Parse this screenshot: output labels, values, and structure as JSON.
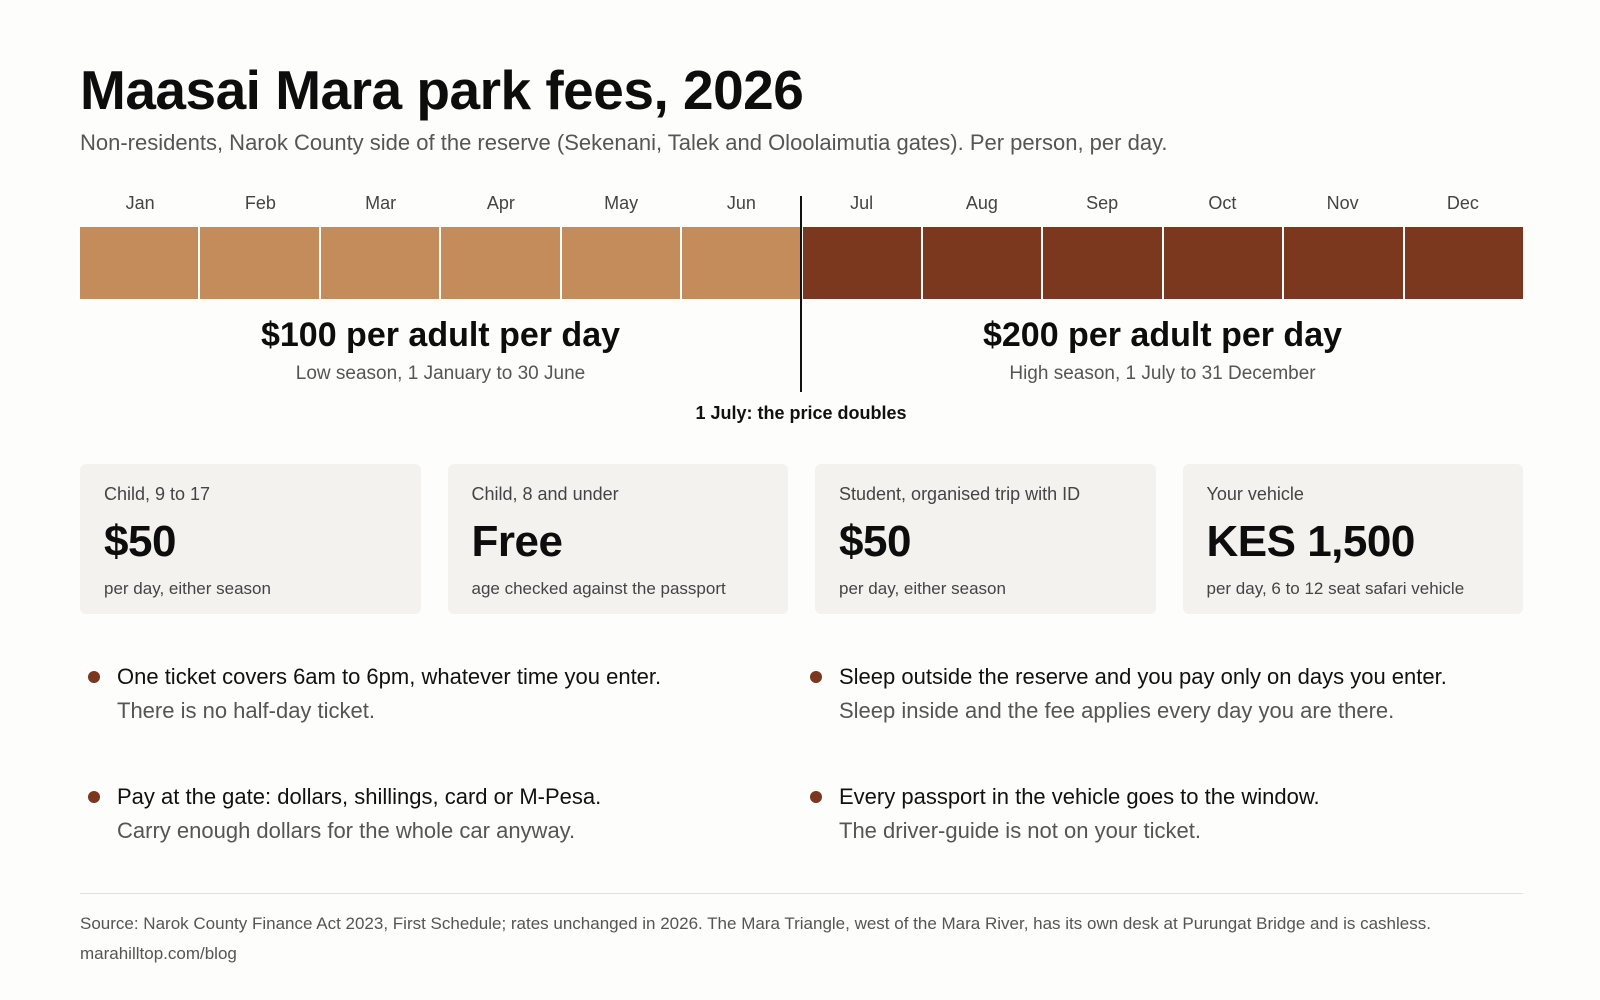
{
  "header": {
    "title": "Maasai Mara park fees, 2026",
    "subtitle": "Non-residents, Narok County side of the reserve (Sekenani, Talek and Oloolaimutia gates). Per person, per day."
  },
  "timeline": {
    "months": [
      "Jan",
      "Feb",
      "Mar",
      "Apr",
      "May",
      "Jun",
      "Jul",
      "Aug",
      "Sep",
      "Oct",
      "Nov",
      "Dec"
    ],
    "season_by_month": [
      "low",
      "low",
      "low",
      "low",
      "low",
      "low",
      "high",
      "high",
      "high",
      "high",
      "high",
      "high"
    ],
    "colors": {
      "low": "#c48c5a",
      "high": "#7b381e"
    },
    "low": {
      "price": "$100 per adult per day",
      "range": "Low season, 1 January to 30 June"
    },
    "high": {
      "price": "$200 per adult per day",
      "range": "High season, 1 July to 31 December"
    },
    "divider_note": "1 July: the price doubles"
  },
  "cards": [
    {
      "label": "Child, 9 to 17",
      "value": "$50",
      "note": "per day, either season"
    },
    {
      "label": "Child, 8 and under",
      "value": "Free",
      "note": "age checked against the passport"
    },
    {
      "label": "Student, organised trip with ID",
      "value": "$50",
      "note": "per day, either season"
    },
    {
      "label": "Your vehicle",
      "value": "KES 1,500",
      "note": "per day, 6 to 12 seat safari vehicle"
    }
  ],
  "tips": [
    {
      "main": "One ticket covers 6am to 6pm, whatever time you enter.",
      "sub": "There is no half-day ticket."
    },
    {
      "main": "Sleep outside the reserve and you pay only on days you enter.",
      "sub": "Sleep inside and the fee applies every day you are there."
    },
    {
      "main": "Pay at the gate: dollars, shillings, card or M-Pesa.",
      "sub": "Carry enough dollars for the whole car anyway."
    },
    {
      "main": "Every passport in the vehicle goes to the window.",
      "sub": "The driver-guide is not on your ticket."
    }
  ],
  "footer": {
    "source": "Source: Narok County Finance Act 2023, First Schedule; rates unchanged in 2026. The Mara Triangle, west of the Mara River, has its own desk at Purungat Bridge and is cashless.",
    "credit": "marahilltop.com/blog"
  }
}
